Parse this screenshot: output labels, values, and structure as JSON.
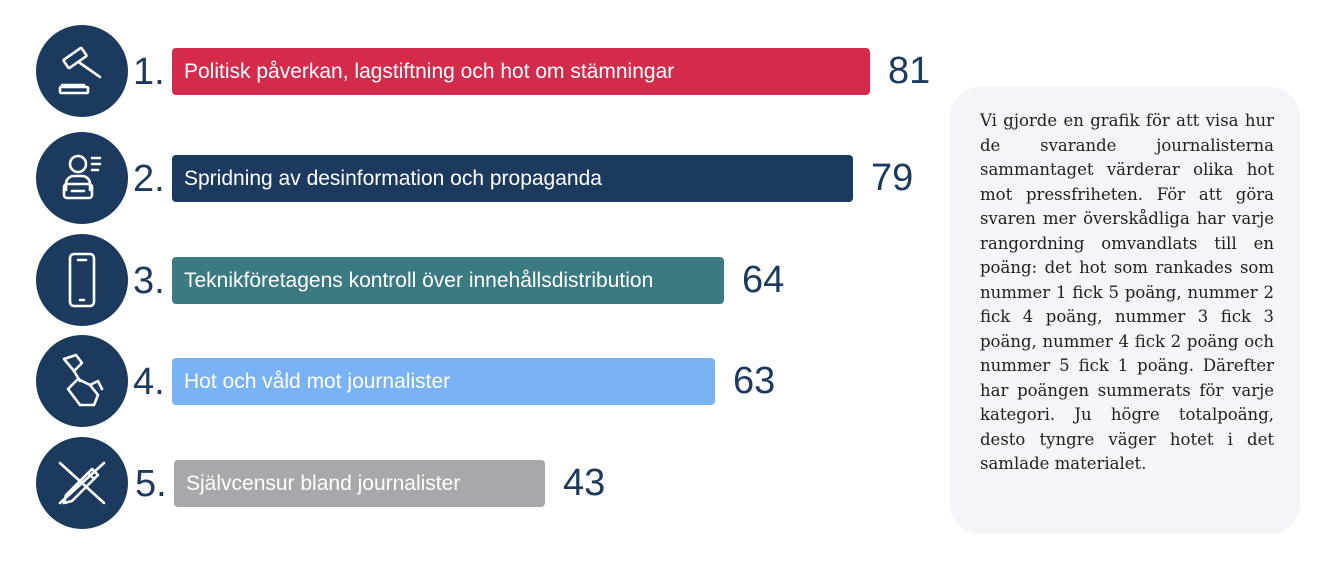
{
  "chart_data": {
    "type": "bar",
    "orientation": "horizontal",
    "categories": [
      "Politisk påverkan, lagstiftning och hot om stämningar",
      "Spridning av desinformation och propaganda",
      "Teknikföretagens kontroll över innehållsdistribution",
      "Hot och våld mot journalister",
      "Självcensur bland journalister"
    ],
    "ranks": [
      "1.",
      "2.",
      "3.",
      "4.",
      "5."
    ],
    "values": [
      81,
      79,
      64,
      63,
      43
    ],
    "value_labels": [
      "81",
      "79",
      "64",
      "63",
      "43"
    ],
    "bar_colors": [
      "#d42a4b",
      "#1c3a5e",
      "#3b7a80",
      "#7ab3f5",
      "#a7a7ac"
    ],
    "icons": [
      "gavel-icon",
      "person-speaking-icon",
      "smartphone-icon",
      "fist-icon",
      "crossed-pen-icon"
    ],
    "grid": false,
    "legend": "none"
  },
  "note": {
    "text": "Vi gjorde en grafik för att visa hur de svarande journalisterna sammantaget värderar olika hot mot pressfriheten. För att göra svaren mer överskådliga har varje rangordning omvandlats till en poäng: det hot som rankades som nummer 1 fick 5 poäng, nummer 2 fick 4 poäng, nummer 3 fick 3 poäng, nummer 4 fick 2 poäng och nummer 5 fick 1 poäng. Därefter har poängen summerats för varje kategori. Ju högre totalpoäng, desto tyngre väger hotet i det samlade materialet."
  },
  "colors": {
    "icon_background": "#1c3a5e",
    "rank_text": "#1c3a5e",
    "note_background": "#f4f4f9"
  }
}
